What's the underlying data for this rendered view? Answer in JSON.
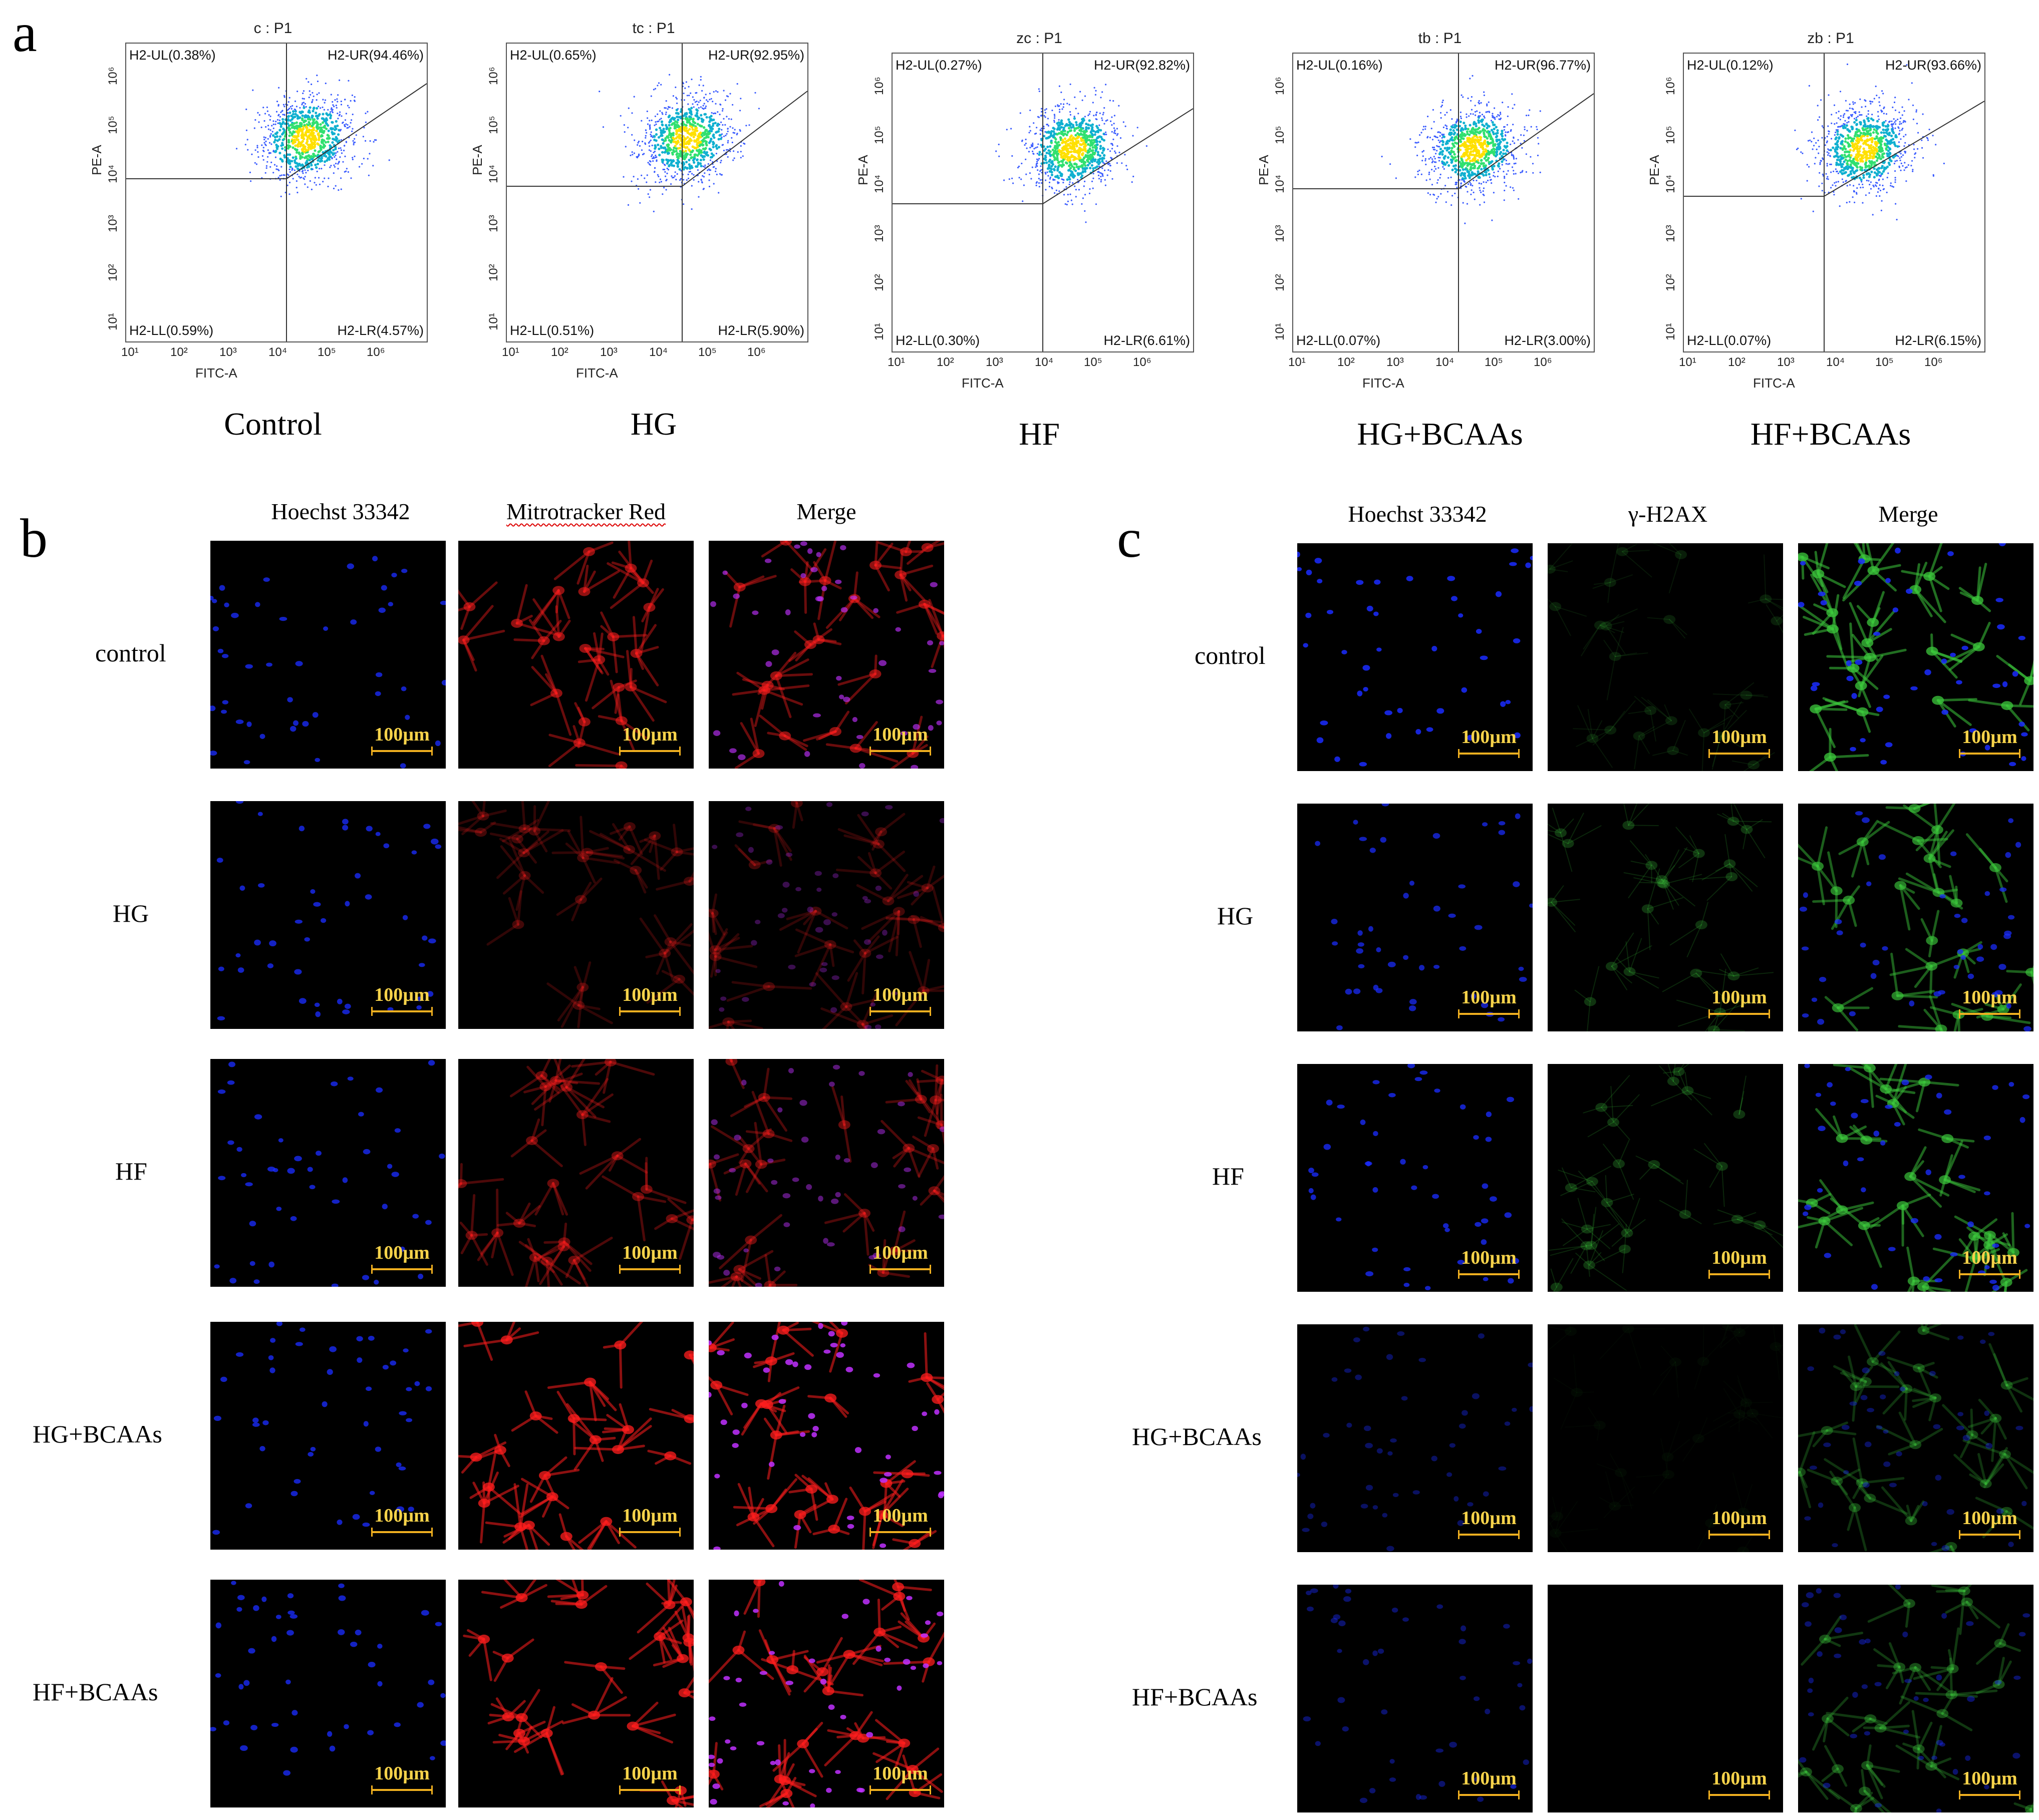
{
  "panel_letters": {
    "a": "a",
    "b": "b",
    "c": "c"
  },
  "flow_axes": {
    "x_label": "FITC-A",
    "y_label": "PE-A",
    "ticks": [
      "10¹",
      "10²",
      "10³",
      "10⁴",
      "10⁵",
      "10⁶"
    ]
  },
  "chart_data": [
    {
      "type": "scatter",
      "title": "c : P1",
      "group": "Control",
      "quadrants": {
        "ul": "H2-UL(0.38%)",
        "ur": "H2-UR(94.46%)",
        "ll": "H2-LL(0.59%)",
        "lr": "H2-LR(4.57%)"
      },
      "xlabel": "FITC-A",
      "ylabel": "PE-A",
      "log_scale": true
    },
    {
      "type": "scatter",
      "title": "tc : P1",
      "group": "HG",
      "quadrants": {
        "ul": "H2-UL(0.65%)",
        "ur": "H2-UR(92.95%)",
        "ll": "H2-LL(0.51%)",
        "lr": "H2-LR(5.90%)"
      },
      "xlabel": "FITC-A",
      "ylabel": "PE-A",
      "log_scale": true
    },
    {
      "type": "scatter",
      "title": "zc : P1",
      "group": "HF",
      "quadrants": {
        "ul": "H2-UL(0.27%)",
        "ur": "H2-UR(92.82%)",
        "ll": "H2-LL(0.30%)",
        "lr": "H2-LR(6.61%)"
      },
      "xlabel": "FITC-A",
      "ylabel": "PE-A",
      "log_scale": true
    },
    {
      "type": "scatter",
      "title": "tb : P1",
      "group": "HG+BCAAs",
      "quadrants": {
        "ul": "H2-UL(0.16%)",
        "ur": "H2-UR(96.77%)",
        "ll": "H2-LL(0.07%)",
        "lr": "H2-LR(3.00%)"
      },
      "xlabel": "FITC-A",
      "ylabel": "PE-A",
      "log_scale": true
    },
    {
      "type": "scatter",
      "title": "zb : P1",
      "group": "HF+BCAAs",
      "quadrants": {
        "ul": "H2-UL(0.12%)",
        "ur": "H2-UR(93.66%)",
        "ll": "H2-LL(0.07%)",
        "lr": "H2-LR(6.15%)"
      },
      "xlabel": "FITC-A",
      "ylabel": "PE-A",
      "log_scale": true
    }
  ],
  "panel_b": {
    "columns": [
      "Hoechst 33342",
      "Mitrotracker Red",
      "Merge"
    ],
    "rows": [
      "control",
      "HG",
      "HF",
      "HG+BCAAs",
      "HF+BCAAs"
    ],
    "mito_intensity": [
      0.75,
      0.35,
      0.55,
      1.0,
      1.0
    ]
  },
  "panel_c": {
    "columns": [
      "Hoechst 33342",
      "γ-H2AX",
      "Merge"
    ],
    "rows": [
      "control",
      "HG",
      "HF",
      "HG+BCAAs",
      "HF+BCAAs"
    ],
    "nuclei_intensity": [
      1.0,
      0.85,
      0.9,
      0.45,
      0.5
    ],
    "h2ax_intensity": [
      0.2,
      0.35,
      0.35,
      0.05,
      0.0
    ]
  },
  "scale_bar": "100µm",
  "colors": {
    "hoechst": "#1a2cff",
    "mito": "#ff2020",
    "h2ax": "#3cc83c",
    "scale": "#f0b020",
    "scale_text": "#f7d34a"
  }
}
